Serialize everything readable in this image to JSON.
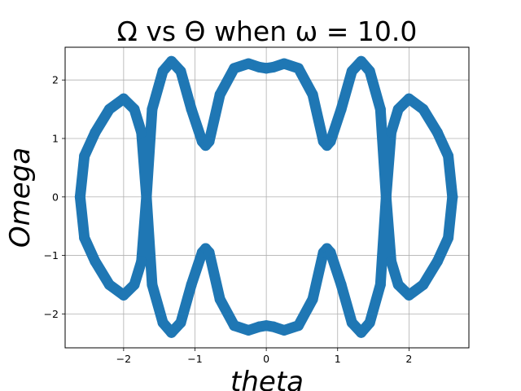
{
  "chart_data": {
    "type": "line",
    "title": "Ω vs Θ when ω = 10.0",
    "xlabel": "theta",
    "ylabel": "Omega",
    "xlim": [
      -2.82,
      2.84
    ],
    "ylim": [
      -2.58,
      2.56
    ],
    "xticks": [
      -2,
      -1,
      0,
      1,
      2
    ],
    "xtick_labels": [
      "−2",
      "−1",
      "0",
      "1",
      "2"
    ],
    "yticks": [
      -2,
      -1,
      0,
      1,
      2
    ],
    "ytick_labels": [
      "−2",
      "−1",
      "0",
      "1",
      "2"
    ],
    "grid": true,
    "series_color": "#1f77b4",
    "series": [
      {
        "x": [
          -2.61,
          -2.55,
          -2.4,
          -2.2,
          -2.0,
          -1.85,
          -1.75,
          -1.68,
          -1.6,
          -1.45,
          -1.33,
          -1.2,
          -1.05,
          -0.9,
          -0.85,
          -0.8,
          -0.65,
          -0.45,
          -0.25,
          -0.1,
          0.0,
          0.1,
          0.25,
          0.45,
          0.65,
          0.8,
          0.85,
          0.9,
          1.05,
          1.2,
          1.33,
          1.45,
          1.6,
          1.68,
          1.75,
          1.85,
          2.0,
          2.2,
          2.4,
          2.55,
          2.61
        ],
        "y": [
          0.0,
          0.7,
          1.1,
          1.5,
          1.68,
          1.5,
          1.1,
          0.0,
          1.5,
          2.15,
          2.32,
          2.15,
          1.5,
          0.95,
          0.88,
          0.95,
          1.75,
          2.2,
          2.28,
          2.22,
          2.2,
          2.22,
          2.28,
          2.2,
          1.75,
          0.95,
          0.88,
          0.95,
          1.5,
          2.15,
          2.32,
          2.15,
          1.5,
          0.0,
          1.1,
          1.5,
          1.68,
          1.5,
          1.1,
          0.7,
          0.0
        ]
      }
    ]
  }
}
